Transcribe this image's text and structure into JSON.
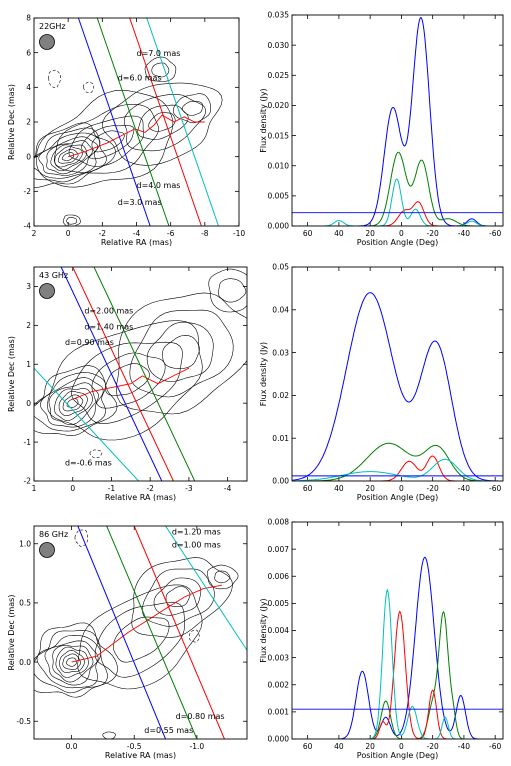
{
  "figure": {
    "background": "#ffffff",
    "line_colors": {
      "blue": "#0000ff",
      "green": "#008000",
      "red": "#ff0000",
      "cyan": "#00bfbf",
      "black": "#000000"
    }
  },
  "chart_data": [
    {
      "type": "contour",
      "panel": "map-22ghz",
      "xlabel": "Relative RA (mas)",
      "ylabel": "Relative Dec (mas)",
      "xlim": [
        2,
        -10
      ],
      "ylim": [
        -4,
        8
      ],
      "xticks": [
        2,
        0,
        -2,
        -4,
        -6,
        -8,
        -10
      ],
      "yticks": [
        -4,
        -2,
        0,
        2,
        4,
        6,
        8
      ],
      "band_label": "22GHz",
      "slices": [
        {
          "label": "d=7.0 mas",
          "color": "#00bfbf",
          "points": [
            [
              -4.6,
              8
            ],
            [
              -8.8,
              -4
            ]
          ]
        },
        {
          "label": "d=6.0 mas",
          "color": "#ff0000",
          "points": [
            [
              -3.6,
              8
            ],
            [
              -7.8,
              -4
            ]
          ]
        },
        {
          "label": "d=4.0 mas",
          "color": "#008000",
          "points": [
            [
              -1.7,
              8
            ],
            [
              -5.9,
              -4
            ]
          ]
        },
        {
          "label": "d=3.0 mas",
          "color": "#0000ff",
          "points": [
            [
              -0.6,
              8
            ],
            [
              -4.8,
              -4
            ]
          ]
        }
      ],
      "annotations": [
        {
          "text": "d=7.0 mas",
          "x": -4.0,
          "y": 5.8
        },
        {
          "text": "d=6.0 mas",
          "x": -2.9,
          "y": 4.4
        },
        {
          "text": "d=4.0 mas",
          "x": -4.0,
          "y": -1.8
        },
        {
          "text": "d=3.0 mas",
          "x": -2.9,
          "y": -2.8
        }
      ],
      "ridge_line": [
        [
          0,
          0
        ],
        [
          -1,
          0.3
        ],
        [
          -2.3,
          0.8
        ],
        [
          -3.3,
          1.3
        ],
        [
          -3.9,
          1.6
        ],
        [
          -4.5,
          1.4
        ],
        [
          -5,
          1.8
        ],
        [
          -5.5,
          2.4
        ],
        [
          -6.2,
          2.0
        ],
        [
          -6.8,
          2.3
        ],
        [
          -7.4,
          2.0
        ],
        [
          -8,
          2.0
        ]
      ],
      "contour_sets": [
        {
          "center": [
            0,
            0
          ],
          "rx": [
            0.35,
            0.6,
            0.85,
            1.1,
            1.4,
            1.7,
            2.0,
            2.3,
            2.6
          ],
          "ry": [
            0.2,
            0.35,
            0.5,
            0.65,
            0.8,
            0.95,
            1.15,
            1.35,
            1.55
          ],
          "angle": 22
        },
        {
          "center": [
            -2.3,
            0.9
          ],
          "rx": [
            1.0,
            1.6,
            2.3,
            3.2,
            4.2
          ],
          "ry": [
            0.5,
            0.8,
            1.2,
            1.7,
            2.4
          ],
          "angle": 22
        },
        {
          "center": [
            -5.5,
            2.0
          ],
          "rx": [
            0.8,
            1.5,
            2.4,
            3.4
          ],
          "ry": [
            0.5,
            0.9,
            1.5,
            2.2
          ],
          "angle": 20
        },
        {
          "center": [
            -7.3,
            2.8
          ],
          "rx": [
            0.6,
            1.1
          ],
          "ry": [
            0.4,
            0.8
          ],
          "angle": 10
        },
        {
          "center": [
            -5.4,
            5.0
          ],
          "rx": [
            0.5,
            0.9
          ],
          "ry": [
            0.4,
            0.7
          ],
          "angle": 0
        },
        {
          "center": [
            -0.2,
            -3.7
          ],
          "rx": [
            0.3,
            0.5
          ],
          "ry": [
            0.2,
            0.35
          ],
          "angle": 0
        }
      ],
      "dashed_contours": [
        {
          "center": [
            0.8,
            4.5
          ],
          "rx": [
            0.35
          ],
          "ry": [
            0.5
          ],
          "angle": 0
        },
        {
          "center": [
            -1.2,
            4.0
          ],
          "rx": [
            0.3
          ],
          "ry": [
            0.3
          ],
          "angle": 0
        }
      ]
    },
    {
      "type": "line",
      "panel": "profile-22ghz",
      "xlabel": "Position Angle (Deg)",
      "ylabel": "Flux density (Jy)",
      "xlim": [
        70,
        -65
      ],
      "ylim": [
        0,
        0.035
      ],
      "xticks": [
        60,
        40,
        20,
        0,
        -20,
        -40,
        -60
      ],
      "yticks": [
        0.0,
        0.005,
        0.01,
        0.015,
        0.02,
        0.025,
        0.03,
        0.035
      ],
      "ytick_labels": [
        "0.000",
        "0.005",
        "0.010",
        "0.015",
        "0.020",
        "0.025",
        "0.030",
        "0.035"
      ],
      "threshold": 0.0022,
      "series": [
        {
          "color": "#0000ff",
          "baseline": 0.0,
          "components": [
            [
              5.5,
              0.0195,
              5.5
            ],
            [
              -12.5,
              0.0345,
              5.5
            ],
            [
              -45,
              0.0012,
              3
            ]
          ]
        },
        {
          "color": "#008000",
          "baseline": 0.0,
          "components": [
            [
              2,
              0.0122,
              5
            ],
            [
              -13,
              0.0108,
              4.5
            ],
            [
              -30,
              0.0012,
              5
            ]
          ]
        },
        {
          "color": "#ff0000",
          "baseline": 0.0,
          "components": [
            [
              -2,
              0.0025,
              4
            ],
            [
              -11,
              0.0038,
              3.5
            ]
          ]
        },
        {
          "color": "#00bfbf",
          "baseline": 0.0,
          "components": [
            [
              3,
              0.0078,
              3
            ],
            [
              -9,
              0.0028,
              3
            ],
            [
              40,
              0.0009,
              3
            ],
            [
              -45,
              0.0008,
              3
            ]
          ]
        }
      ]
    },
    {
      "type": "contour",
      "panel": "map-43ghz",
      "xlabel": "Relative RA (mas)",
      "ylabel": "Relative Dec (mas)",
      "xlim": [
        1,
        -4.5
      ],
      "ylim": [
        -2,
        3.5
      ],
      "xticks": [
        1,
        0,
        -1,
        -2,
        -3,
        -4
      ],
      "yticks": [
        -2,
        -1,
        0,
        1,
        2,
        3
      ],
      "band_label": "43 GHz",
      "slices": [
        {
          "label": "d=2.00 mas",
          "color": "#ff0000",
          "points": [
            [
              0.0,
              3.5
            ],
            [
              -2.6,
              -2
            ]
          ]
        },
        {
          "label": "d=1.40 mas",
          "color": "#008000",
          "points": [
            [
              -0.55,
              3.5
            ],
            [
              -3.15,
              -2
            ]
          ]
        },
        {
          "label": "d=0.90 mas",
          "color": "#0000ff",
          "points": [
            [
              0.3,
              3.5
            ],
            [
              -2.3,
              -2
            ]
          ]
        },
        {
          "label": "d=-0.6 mas",
          "color": "#00bfbf",
          "points": [
            [
              1,
              0.9
            ],
            [
              -1.7,
              -2
            ]
          ]
        }
      ],
      "annotations": [
        {
          "text": "d=2.00 mas",
          "x": -0.3,
          "y": 2.3
        },
        {
          "text": "d=1.40 mas",
          "x": -0.3,
          "y": 1.9
        },
        {
          "text": "d=0.90 mas",
          "x": 0.2,
          "y": 1.5
        },
        {
          "text": "d=-0.6 mas",
          "x": 0.2,
          "y": -1.6
        }
      ],
      "ridge_line": [
        [
          0,
          0.1
        ],
        [
          -0.5,
          0.3
        ],
        [
          -1.0,
          0.4
        ],
        [
          -1.5,
          0.5
        ],
        [
          -1.8,
          0.7
        ],
        [
          -2.2,
          0.5
        ],
        [
          -2.6,
          0.7
        ],
        [
          -3.0,
          0.9
        ]
      ],
      "contour_sets": [
        {
          "center": [
            0,
            0
          ],
          "rx": [
            0.15,
            0.27,
            0.39,
            0.52,
            0.66,
            0.8,
            0.96,
            1.12
          ],
          "ry": [
            0.1,
            0.18,
            0.27,
            0.36,
            0.46,
            0.56,
            0.68,
            0.8
          ],
          "angle": 28
        },
        {
          "center": [
            -1.4,
            0.6
          ],
          "rx": [
            0.6,
            1.0,
            1.5,
            2.1
          ],
          "ry": [
            0.35,
            0.6,
            0.9,
            1.3
          ],
          "angle": 25
        },
        {
          "center": [
            -2.8,
            1.3
          ],
          "rx": [
            0.5,
            0.9,
            1.4,
            1.9
          ],
          "ry": [
            0.4,
            0.7,
            1.0,
            1.4
          ],
          "angle": 30
        },
        {
          "center": [
            -4.1,
            2.9
          ],
          "rx": [
            0.35,
            0.6
          ],
          "ry": [
            0.3,
            0.55
          ],
          "angle": 0
        }
      ],
      "dashed_contours": [
        {
          "center": [
            -0.6,
            -1.3
          ],
          "rx": [
            0.15
          ],
          "ry": [
            0.1
          ],
          "angle": 0
        }
      ]
    },
    {
      "type": "line",
      "panel": "profile-43ghz",
      "xlabel": "Position Angle (Deg)",
      "ylabel": "Flux density (Jy)",
      "xlim": [
        70,
        -65
      ],
      "ylim": [
        0,
        0.05
      ],
      "xticks": [
        60,
        40,
        20,
        0,
        -20,
        -40,
        -60
      ],
      "yticks": [
        0.0,
        0.01,
        0.02,
        0.03,
        0.04,
        0.05
      ],
      "ytick_labels": [
        "0.00",
        "0.01",
        "0.02",
        "0.03",
        "0.04",
        "0.05"
      ],
      "threshold": 0.0012,
      "series": [
        {
          "color": "#0000ff",
          "baseline": 0.0,
          "components": [
            [
              20,
              0.044,
              15
            ],
            [
              -22,
              0.0318,
              10
            ]
          ]
        },
        {
          "color": "#008000",
          "baseline": 0.0,
          "components": [
            [
              8,
              0.0088,
              14
            ],
            [
              -23,
              0.0075,
              8
            ]
          ]
        },
        {
          "color": "#ff0000",
          "baseline": 0.0,
          "components": [
            [
              -5,
              0.0046,
              5
            ],
            [
              -20,
              0.0058,
              4
            ]
          ]
        },
        {
          "color": "#00bfbf",
          "baseline": 0.0,
          "components": [
            [
              20,
              0.0022,
              18
            ],
            [
              -28,
              0.005,
              8
            ]
          ]
        }
      ]
    },
    {
      "type": "contour",
      "panel": "map-86ghz",
      "xlabel": "Relative RA (mas)",
      "ylabel": "Relative Dec (mas)",
      "xlim": [
        0.3,
        -1.4
      ],
      "ylim": [
        -0.65,
        1.15
      ],
      "xticks": [
        0.0,
        -0.5,
        -1.0
      ],
      "xtick_labels": [
        "0.0",
        "-0.5",
        "-1.0"
      ],
      "yticks": [
        -0.5,
        0.0,
        0.5,
        1.0
      ],
      "ytick_labels": [
        "-0.5",
        "0.0",
        "0.5",
        "1.0"
      ],
      "band_label": "86 GHz",
      "slices": [
        {
          "label": "d=1.20 mas",
          "color": "#00bfbf",
          "points": [
            [
              -0.75,
              1.15
            ],
            [
              -1.4,
              0.1
            ]
          ]
        },
        {
          "label": "d=1.00 mas",
          "color": "#ff0000",
          "points": [
            [
              -0.5,
              1.15
            ],
            [
              -1.22,
              -0.65
            ]
          ]
        },
        {
          "label": "d=0.80 mas",
          "color": "#008000",
          "points": [
            [
              -0.28,
              1.15
            ],
            [
              -1.0,
              -0.65
            ]
          ]
        },
        {
          "label": "d=0.55 mas",
          "color": "#0000ff",
          "points": [
            [
              -0.05,
              1.15
            ],
            [
              -0.75,
              -0.65
            ]
          ]
        }
      ],
      "annotations": [
        {
          "text": "d=1.20 mas",
          "x": -0.8,
          "y": 1.08
        },
        {
          "text": "d=1.00 mas",
          "x": -0.8,
          "y": 0.97
        },
        {
          "text": "d=0.80 mas",
          "x": -0.83,
          "y": -0.48
        },
        {
          "text": "d=0.55 mas",
          "x": -0.58,
          "y": -0.6
        }
      ],
      "ridge_line": [
        [
          0,
          0.0
        ],
        [
          -0.2,
          0.05
        ],
        [
          -0.45,
          0.25
        ],
        [
          -0.6,
          0.35
        ],
        [
          -0.75,
          0.45
        ],
        [
          -0.9,
          0.55
        ],
        [
          -1.05,
          0.62
        ],
        [
          -1.2,
          0.65
        ]
      ],
      "contour_sets": [
        {
          "center": [
            0,
            0
          ],
          "rx": [
            0.04,
            0.07,
            0.1,
            0.13,
            0.16,
            0.2,
            0.24,
            0.28,
            0.33
          ],
          "ry": [
            0.035,
            0.065,
            0.09,
            0.12,
            0.15,
            0.18,
            0.22,
            0.26,
            0.3
          ],
          "angle": 15
        },
        {
          "center": [
            -0.55,
            0.2
          ],
          "rx": [
            0.25,
            0.4,
            0.55
          ],
          "ry": [
            0.15,
            0.25,
            0.35
          ],
          "angle": 35
        },
        {
          "center": [
            -0.85,
            0.55
          ],
          "rx": [
            0.1,
            0.2,
            0.3,
            0.42
          ],
          "ry": [
            0.08,
            0.14,
            0.22,
            0.3
          ],
          "angle": 30
        },
        {
          "center": [
            -1.2,
            0.72
          ],
          "rx": [
            0.06,
            0.12
          ],
          "ry": [
            0.05,
            0.1
          ],
          "angle": 0
        },
        {
          "center": [
            -0.3,
            -0.62
          ],
          "rx": [
            0.05
          ],
          "ry": [
            0.03
          ],
          "angle": 0
        }
      ],
      "dashed_contours": [
        {
          "center": [
            -0.08,
            1.05
          ],
          "rx": [
            0.05
          ],
          "ry": [
            0.07
          ],
          "angle": 0
        },
        {
          "center": [
            -0.98,
            0.22
          ],
          "rx": [
            0.04
          ],
          "ry": [
            0.05
          ],
          "angle": 0
        }
      ]
    },
    {
      "type": "line",
      "panel": "profile-86ghz",
      "xlabel": "Position Angle (Deg)",
      "ylabel": "Flux density (Jy)",
      "xlim": [
        70,
        -65
      ],
      "ylim": [
        0,
        0.008
      ],
      "xticks": [
        60,
        40,
        20,
        0,
        -20,
        -40,
        -60
      ],
      "yticks": [
        0.0,
        0.001,
        0.002,
        0.003,
        0.004,
        0.005,
        0.006,
        0.007,
        0.008
      ],
      "ytick_labels": [
        "0.000",
        "0.001",
        "0.002",
        "0.003",
        "0.004",
        "0.005",
        "0.006",
        "0.007",
        "0.008"
      ],
      "threshold": 0.0011,
      "series": [
        {
          "color": "#0000ff",
          "baseline": 0.0,
          "components": [
            [
              25,
              0.0025,
              4
            ],
            [
              10,
              0.0008,
              3
            ],
            [
              -15,
              0.0067,
              6
            ],
            [
              -38,
              0.0016,
              3
            ]
          ]
        },
        {
          "color": "#008000",
          "baseline": 0.0,
          "components": [
            [
              10,
              0.0014,
              3
            ],
            [
              -20,
              0.0012,
              3
            ],
            [
              -27,
              0.0046,
              3
            ],
            [
              -33,
              0.0008,
              2
            ]
          ]
        },
        {
          "color": "#ff0000",
          "baseline": 0.0,
          "components": [
            [
              1,
              0.0047,
              3.5
            ],
            [
              -20,
              0.0018,
              2.5
            ],
            [
              12,
              0.0006,
              2
            ]
          ]
        },
        {
          "color": "#00bfbf",
          "baseline": 0.0,
          "components": [
            [
              9,
              0.0055,
              3
            ],
            [
              -7,
              0.0012,
              3
            ],
            [
              -28,
              0.0008,
              2
            ]
          ]
        }
      ]
    }
  ]
}
